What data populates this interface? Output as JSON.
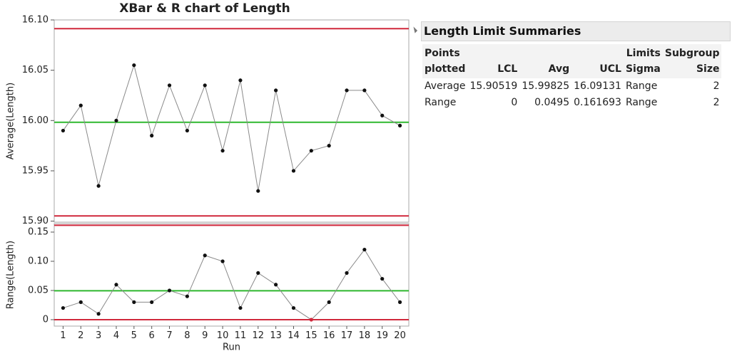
{
  "chart_data": [
    {
      "type": "line",
      "title": "XBar & R chart of Length",
      "ylabel": "Average(Length)",
      "values": [
        15.99,
        16.015,
        15.935,
        16.0,
        16.055,
        15.985,
        16.035,
        15.99,
        16.035,
        15.97,
        16.04,
        15.93,
        16.03,
        15.95,
        15.97,
        15.975,
        16.03,
        16.03,
        16.005,
        15.995
      ],
      "ylim": [
        15.899,
        16.1
      ],
      "yticks": [
        {
          "value": 15.9,
          "label": "15.90"
        },
        15.95,
        {
          "value": 16.0,
          "label": "16.00"
        },
        16.05,
        {
          "value": 16.1,
          "label": "16.10"
        }
      ],
      "color": "#8a8a8a"
    },
    {
      "type": "line",
      "ylabel": "Range(Length)",
      "xlabel": "Run",
      "categories": [
        1,
        2,
        3,
        4,
        5,
        6,
        7,
        8,
        9,
        10,
        11,
        12,
        13,
        14,
        15,
        16,
        17,
        18,
        19,
        20
      ],
      "values": [
        0.02,
        0.03,
        0.01,
        0.06,
        0.03,
        0.03,
        0.05,
        0.04,
        0.11,
        0.1,
        0.02,
        0.08,
        0.06,
        0.02,
        0,
        0.03,
        0.08,
        0.12,
        0.07,
        0.03
      ],
      "ylim": [
        -0.011,
        0.1646
      ],
      "yticks": [
        0,
        0.05,
        {
          "value": 0.1,
          "label": "0.10"
        },
        0.15
      ],
      "color": "#8a8a8a"
    }
  ],
  "table": {
    "title": "Length Limit Summaries",
    "columns": [
      "Points plotted",
      "LCL",
      "Avg",
      "UCL",
      "Limits Sigma",
      "Subgroup Size"
    ],
    "rows": [
      [
        "Average",
        15.90519,
        15.99825,
        16.09131,
        "Range",
        2
      ],
      [
        "Range",
        0,
        0.0495,
        0.161693,
        "Range",
        2
      ]
    ]
  }
}
